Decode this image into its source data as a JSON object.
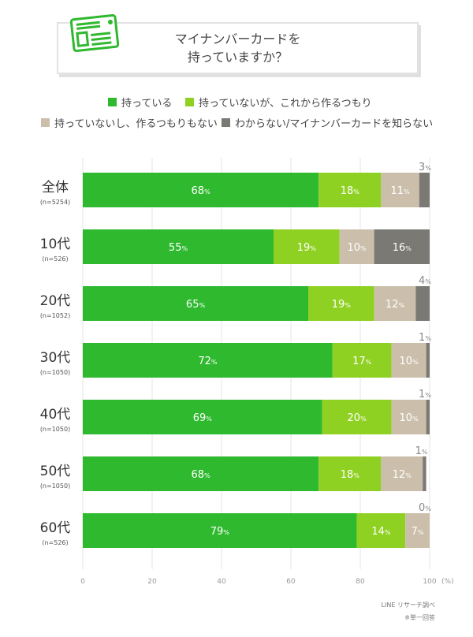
{
  "chart_data": {
    "type": "bar",
    "orientation": "horizontal",
    "stacked": true,
    "title": "マイナンバーカードを\n持っていますか？",
    "title_lines": [
      "マイナンバーカードを",
      "持っていますか？"
    ],
    "categories": [
      "全体",
      "10代",
      "20代",
      "30代",
      "40代",
      "50代",
      "60代"
    ],
    "sample_sizes": [
      "(n=5254)",
      "(n=526)",
      "(n=1052)",
      "(n=1050)",
      "(n=1050)",
      "(n=1050)",
      "(n=526)"
    ],
    "series": [
      {
        "name": "持っている",
        "color": "#2fb92f",
        "values": [
          68,
          55,
          65,
          72,
          69,
          68,
          79
        ]
      },
      {
        "name": "持っていないが、これから作るつもり",
        "color": "#8fd122",
        "values": [
          18,
          19,
          19,
          17,
          20,
          18,
          14
        ]
      },
      {
        "name": "持っていないし、作るつもりもない",
        "color": "#cbbfab",
        "values": [
          11,
          10,
          12,
          10,
          10,
          12,
          7
        ]
      },
      {
        "name": "わからない/マイナンバーカードを知らない",
        "color": "#7b7974",
        "values": [
          3,
          16,
          4,
          1,
          1,
          1,
          0
        ]
      }
    ],
    "xlim": [
      0,
      100
    ],
    "xticks": [
      0,
      20,
      40,
      60,
      80,
      100
    ],
    "xunit": "(%)",
    "value_suffix": "%",
    "grid": "vertical",
    "legend_position": "top"
  },
  "footer": {
    "source": "LINE リサーチ調べ",
    "note": "※単一回答"
  },
  "icon": "id-card-icon"
}
